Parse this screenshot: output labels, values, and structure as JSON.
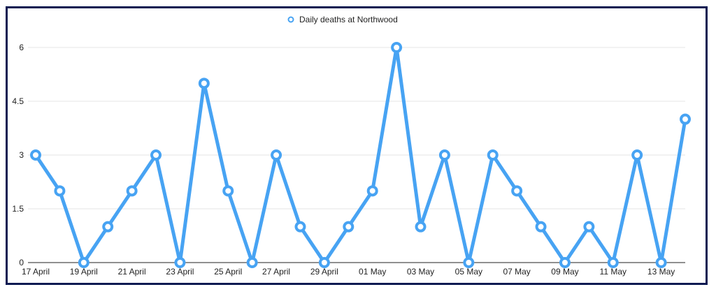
{
  "chart_data": {
    "type": "line",
    "legend_position": "top-center",
    "grid": true,
    "colors": {
      "series": "#47a3f3",
      "grid": "#e6e6e6",
      "axis": "#222222",
      "frame": "#0c1a52"
    },
    "ylim": [
      0,
      6
    ],
    "y_ticks": [
      "0",
      "1.5",
      "3",
      "4.5",
      "6"
    ],
    "x": [
      "17 April",
      "18 April",
      "19 April",
      "20 April",
      "21 April",
      "22 April",
      "23 April",
      "24 April",
      "25 April",
      "26 April",
      "27 April",
      "28 April",
      "29 April",
      "30 April",
      "01 May",
      "02 May",
      "03 May",
      "04 May",
      "05 May",
      "06 May",
      "07 May",
      "08 May",
      "09 May",
      "10 May",
      "11 May",
      "12 May",
      "13 May",
      "14 May"
    ],
    "x_tick_labels": [
      "17 April",
      "19 April",
      "21 April",
      "23 April",
      "25 April",
      "27 April",
      "29 April",
      "01 May",
      "03 May",
      "05 May",
      "07 May",
      "09 May",
      "11 May",
      "13 May"
    ],
    "series": [
      {
        "name": "Daily deaths at Northwood",
        "values": [
          3,
          2,
          0,
          1,
          2,
          3,
          0,
          5,
          2,
          0,
          3,
          1,
          0,
          1,
          2,
          6,
          1,
          3,
          0,
          3,
          2,
          1,
          0,
          1,
          0,
          3,
          0,
          4
        ]
      }
    ]
  }
}
